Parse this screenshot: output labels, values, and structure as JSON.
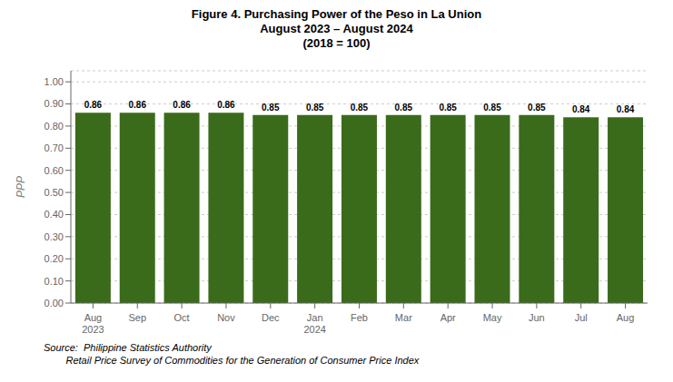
{
  "chart_data": {
    "type": "bar",
    "title": "Figure 4.  Purchasing Power of the Peso in La Union\nAugust 2023 – August 2024\n(2018 = 100)",
    "categories": [
      "Aug\n2023",
      "Sep",
      "Oct",
      "Nov",
      "Dec",
      "Jan\n2024",
      "Feb",
      "Mar",
      "Apr",
      "May",
      "Jun",
      "Jul",
      "Aug"
    ],
    "values": [
      0.86,
      0.86,
      0.86,
      0.86,
      0.85,
      0.85,
      0.85,
      0.85,
      0.85,
      0.85,
      0.85,
      0.84,
      0.84
    ],
    "color": "#3a6b1a",
    "y_label": "PPP",
    "ylim": [
      0.0,
      1.05
    ],
    "yticks": [
      {
        "value": 0,
        "label": "0.00"
      },
      {
        "value": 0.1,
        "label": "0.10"
      },
      {
        "value": 0.2,
        "label": "0.20"
      },
      {
        "value": 0.3,
        "label": "0.30"
      },
      {
        "value": 0.4,
        "label": "0.40"
      },
      {
        "value": 0.5,
        "label": "0.50"
      },
      {
        "value": 0.6,
        "label": "0.60"
      },
      {
        "value": 0.7,
        "label": "0.70"
      },
      {
        "value": 0.8,
        "label": "0.80"
      },
      {
        "value": 0.9,
        "label": "0.90"
      },
      {
        "value": 1,
        "label": "1.00"
      }
    ],
    "grid": true,
    "data_labels": true,
    "annotations": [
      "Source:  Philippine Statistics Authority",
      "        Retail Price Survey of Commodities for the Generation of Consumer Price Index"
    ]
  }
}
